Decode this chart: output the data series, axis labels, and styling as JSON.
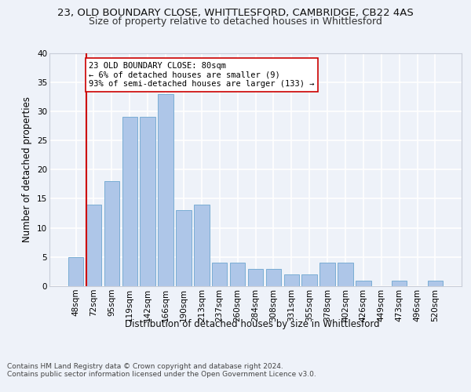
{
  "title": "23, OLD BOUNDARY CLOSE, WHITTLESFORD, CAMBRIDGE, CB22 4AS",
  "subtitle": "Size of property relative to detached houses in Whittlesford",
  "xlabel": "Distribution of detached houses by size in Whittlesford",
  "ylabel": "Number of detached properties",
  "categories": [
    "48sqm",
    "72sqm",
    "95sqm",
    "119sqm",
    "142sqm",
    "166sqm",
    "190sqm",
    "213sqm",
    "237sqm",
    "260sqm",
    "284sqm",
    "308sqm",
    "331sqm",
    "355sqm",
    "378sqm",
    "402sqm",
    "426sqm",
    "449sqm",
    "473sqm",
    "496sqm",
    "520sqm"
  ],
  "values": [
    5,
    14,
    18,
    29,
    29,
    33,
    13,
    14,
    4,
    4,
    3,
    3,
    2,
    2,
    4,
    4,
    1,
    0,
    1,
    0,
    1
  ],
  "bar_color": "#aec6e8",
  "bar_edge_color": "#7aadd4",
  "property_line_color": "#cc0000",
  "annotation_text": "23 OLD BOUNDARY CLOSE: 80sqm\n← 6% of detached houses are smaller (9)\n93% of semi-detached houses are larger (133) →",
  "annotation_box_color": "#ffffff",
  "annotation_box_edge": "#cc0000",
  "ylim": [
    0,
    40
  ],
  "yticks": [
    0,
    5,
    10,
    15,
    20,
    25,
    30,
    35,
    40
  ],
  "footer_text": "Contains HM Land Registry data © Crown copyright and database right 2024.\nContains public sector information licensed under the Open Government Licence v3.0.",
  "background_color": "#eef2f9",
  "grid_color": "#ffffff",
  "title_fontsize": 9.5,
  "subtitle_fontsize": 9,
  "ylabel_fontsize": 8.5,
  "tick_fontsize": 7.5,
  "annotation_fontsize": 7.5,
  "xlabel_fontsize": 8.5,
  "footer_fontsize": 6.5
}
